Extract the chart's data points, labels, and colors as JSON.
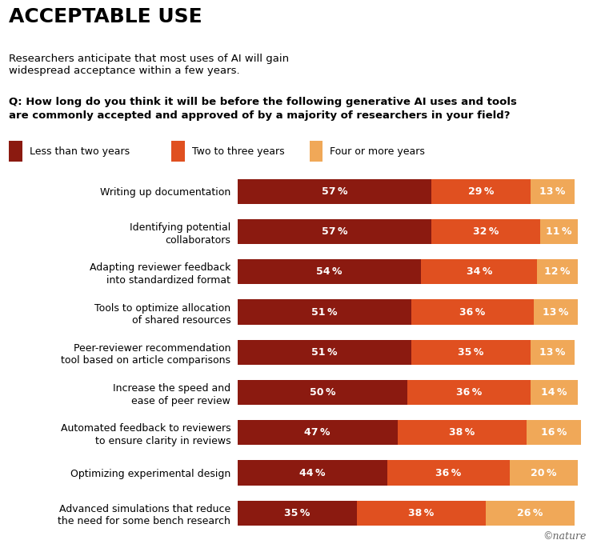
{
  "title": "ACCEPTABLE USE",
  "subtitle": "Researchers anticipate that most uses of AI will gain\nwidespread acceptance within a few years.",
  "question": "Q: How long do you think it will be before the following generative AI uses and tools\nare commonly accepted and approved of by a majority of researchers in your field?",
  "legend_labels": [
    "Less than two years",
    "Two to three years",
    "Four or more years"
  ],
  "colors": [
    "#8B1A10",
    "#E05020",
    "#F0A858"
  ],
  "categories": [
    "Writing up documentation",
    "Identifying potential\ncollaborators",
    "Adapting reviewer feedback\ninto standardized format",
    "Tools to optimize allocation\nof shared resources",
    "Peer-reviewer recommendation\ntool based on article comparisons",
    "Increase the speed and\nease of peer review",
    "Automated feedback to reviewers\nto ensure clarity in reviews",
    "Optimizing experimental design",
    "Advanced simulations that reduce\nthe need for some bench research"
  ],
  "values": [
    [
      57,
      29,
      13
    ],
    [
      57,
      32,
      11
    ],
    [
      54,
      34,
      12
    ],
    [
      51,
      36,
      13
    ],
    [
      51,
      35,
      13
    ],
    [
      50,
      36,
      14
    ],
    [
      47,
      38,
      16
    ],
    [
      44,
      36,
      20
    ],
    [
      35,
      38,
      26
    ]
  ],
  "background_color": "#FFFFFF",
  "bar_height": 0.62,
  "title_fontsize": 18,
  "subtitle_fontsize": 9.5,
  "question_fontsize": 9.5,
  "label_fontsize": 9,
  "bar_label_fontsize": 9,
  "legend_fontsize": 9,
  "nature_credit": "©nature"
}
